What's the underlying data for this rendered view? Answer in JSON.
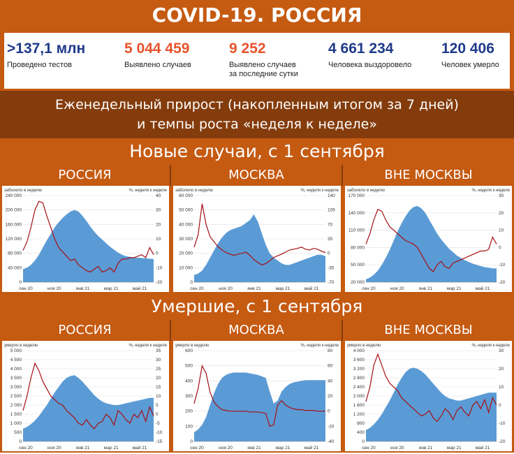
{
  "header": {
    "title": "COVID-19. РОССИЯ"
  },
  "stats": [
    {
      "value": ">137,1 млн",
      "label": "Проведено тестов",
      "label2": "",
      "color": "#1f3a8a"
    },
    {
      "value": "5 044 459",
      "label": "Выявлено случаев",
      "label2": "",
      "color": "#e8542c"
    },
    {
      "value": "9 252",
      "label": "Выявлено случаев",
      "label2": "за последние сутки",
      "color": "#e8542c"
    },
    {
      "value": "4 661 234",
      "label": "Человека выздоровело",
      "label2": "",
      "color": "#1f3a8a"
    },
    {
      "value": "120 406",
      "label": "Человек умерло",
      "label2": "",
      "color": "#1f3a8a"
    }
  ],
  "subtitle": {
    "line1": "Еженедельный прирост (накопленным итогом за 7 дней)",
    "line2": "и темпы роста «неделя к неделе»"
  },
  "sections": {
    "cases": "Новые случаи, с 1 сентября",
    "deaths": "Умершие, с 1 сентября"
  },
  "colors": {
    "band": "#c55a11",
    "band_dark": "#843c0c",
    "area": "#5b9bd5",
    "line": "#a50f15"
  },
  "chart_data": [
    {
      "type": "area",
      "panel": "РОССИЯ",
      "section": "cases",
      "left_axis_label": "заболело в неделю",
      "right_axis_label": "%, неделя к неделе",
      "x_ticks": [
        "сен 20",
        "ноя 20",
        "янв 21",
        "мар 21",
        "май 21"
      ],
      "ylim_left": [
        0,
        240000
      ],
      "yticks_left": [
        "0",
        "40 000",
        "80 000",
        "120 000",
        "160 000",
        "200 000",
        "240 000"
      ],
      "ylim_right": [
        -20,
        40
      ],
      "yticks_right": [
        "-20",
        "-10",
        "0",
        "10",
        "20",
        "30",
        "40"
      ],
      "area_values": [
        36000,
        40000,
        48000,
        60000,
        76000,
        96000,
        116000,
        134000,
        152000,
        166000,
        178000,
        188000,
        196000,
        200000,
        196000,
        184000,
        170000,
        154000,
        140000,
        128000,
        118000,
        108000,
        98000,
        90000,
        82000,
        76000,
        72000,
        70000,
        68000,
        68000,
        67000,
        66000,
        65000,
        64000
      ],
      "line_values": [
        2,
        8,
        18,
        30,
        36,
        35,
        26,
        18,
        10,
        4,
        1,
        -2,
        -5,
        -4,
        -8,
        -10,
        -12,
        -13,
        -11,
        -9,
        -13,
        -12,
        -10,
        -13,
        -7,
        -4,
        -4,
        -3,
        -3,
        -2,
        -1,
        -3,
        4,
        -1
      ]
    },
    {
      "type": "area",
      "panel": "МОСКВА",
      "section": "cases",
      "left_axis_label": "заболело в неделю",
      "right_axis_label": "%, неделя к неделе",
      "x_ticks": [
        "сен 20",
        "ноя 20",
        "янв 21",
        "мар 21",
        "май 21"
      ],
      "ylim_left": [
        0,
        60000
      ],
      "yticks_left": [
        "0",
        "10 000",
        "20 000",
        "30 000",
        "40 000",
        "50 000",
        "60 000"
      ],
      "ylim_right": [
        -70,
        140
      ],
      "yticks_right": [
        "-70",
        "-35",
        "0",
        "35",
        "70",
        "105",
        "140"
      ],
      "area_values": [
        5000,
        6000,
        8000,
        12000,
        17000,
        22000,
        27000,
        31000,
        34000,
        36000,
        37000,
        38000,
        39000,
        41000,
        43000,
        47000,
        42000,
        34000,
        26000,
        20000,
        17000,
        15000,
        13000,
        12000,
        12000,
        13000,
        14000,
        15000,
        16000,
        17000,
        18000,
        19000,
        19000,
        18000
      ],
      "line_values": [
        15,
        45,
        120,
        70,
        40,
        28,
        16,
        8,
        2,
        -2,
        -5,
        -2,
        0,
        3,
        -5,
        -15,
        -22,
        -28,
        -25,
        -18,
        -10,
        -6,
        -2,
        3,
        8,
        10,
        12,
        15,
        10,
        8,
        12,
        10,
        5,
        2
      ]
    },
    {
      "type": "area",
      "panel": "ВНЕ МОСКВЫ",
      "section": "cases",
      "left_axis_label": "заболело в неделю",
      "right_axis_label": "%, неделя к неделе",
      "x_ticks": [
        "сен 20",
        "ноя 20",
        "янв 21",
        "мар 21",
        "май 21"
      ],
      "ylim_left": [
        20000,
        170000
      ],
      "yticks_left": [
        "20 000",
        "50 000",
        "80 000",
        "110 000",
        "140 000",
        "170 000"
      ],
      "ylim_right": [
        -20,
        30
      ],
      "yticks_right": [
        "-20",
        "-10",
        "0",
        "10",
        "20",
        "30"
      ],
      "area_values": [
        25000,
        28000,
        33000,
        40000,
        50000,
        62000,
        76000,
        92000,
        108000,
        122000,
        134000,
        144000,
        150000,
        152000,
        148000,
        140000,
        128000,
        116000,
        104000,
        94000,
        86000,
        78000,
        72000,
        66000,
        62000,
        58000,
        55000,
        52000,
        50000,
        48000,
        46000,
        45000,
        44000,
        44000
      ],
      "line_values": [
        2,
        8,
        16,
        22,
        21,
        16,
        12,
        10,
        8,
        6,
        4,
        3,
        2,
        0,
        -4,
        -8,
        -12,
        -14,
        -10,
        -8,
        -11,
        -12,
        -9,
        -8,
        -7,
        -6,
        -5,
        -4,
        -3,
        -2,
        -2,
        -1,
        6,
        2
      ]
    },
    {
      "type": "area",
      "panel": "РОССИЯ",
      "section": "deaths",
      "left_axis_label": "умерло в неделю",
      "right_axis_label": "%, неделя к неделе",
      "x_ticks": [
        "сен 20",
        "ноя 20",
        "янв 21",
        "мар 21",
        "май 21"
      ],
      "ylim_left": [
        0,
        5000
      ],
      "yticks_left": [
        "0",
        "500",
        "1 000",
        "1 500",
        "2 000",
        "2 500",
        "3 000",
        "3 500",
        "4 000",
        "4 500",
        "5 000"
      ],
      "ylim_right": [
        -15,
        35
      ],
      "yticks_right": [
        "-15",
        "-10",
        "-5",
        "0",
        "5",
        "10",
        "15",
        "20",
        "25",
        "30",
        "35"
      ],
      "area_values": [
        700,
        800,
        950,
        1150,
        1400,
        1700,
        2000,
        2350,
        2700,
        3000,
        3300,
        3500,
        3600,
        3650,
        3500,
        3300,
        3050,
        2800,
        2550,
        2350,
        2200,
        2100,
        2050,
        2000,
        2000,
        2050,
        2100,
        2150,
        2200,
        2250,
        2300,
        2350,
        2400,
        2400
      ],
      "line_values": [
        2,
        10,
        20,
        28,
        24,
        18,
        14,
        10,
        8,
        6,
        5,
        2,
        0,
        -2,
        -5,
        -6,
        -3,
        -6,
        -8,
        -5,
        -4,
        0,
        -2,
        -6,
        2,
        0,
        -3,
        -5,
        0,
        -2,
        2,
        -4,
        4,
        -1
      ]
    },
    {
      "type": "area",
      "panel": "МОСКВА",
      "section": "deaths",
      "left_axis_label": "умерло в неделю",
      "right_axis_label": "%, неделя к неделе",
      "x_ticks": [
        "сен 20",
        "ноя 20",
        "янв 21",
        "мар 21",
        "май 21"
      ],
      "ylim_left": [
        0,
        600
      ],
      "yticks_left": [
        "0",
        "100",
        "200",
        "300",
        "400",
        "500",
        "600"
      ],
      "ylim_right": [
        -40,
        80
      ],
      "yticks_right": [
        "-40",
        "-20",
        "0",
        "20",
        "40",
        "60",
        "80"
      ],
      "area_values": [
        60,
        80,
        110,
        160,
        240,
        320,
        380,
        420,
        440,
        450,
        455,
        455,
        455,
        455,
        450,
        445,
        440,
        430,
        420,
        330,
        250,
        270,
        330,
        360,
        380,
        390,
        395,
        400,
        405,
        405,
        405,
        405,
        405,
        405
      ],
      "line_values": [
        10,
        30,
        60,
        50,
        25,
        12,
        6,
        2,
        1,
        0,
        0,
        0,
        0,
        0,
        -1,
        -1,
        -1,
        -2,
        -3,
        -20,
        -18,
        8,
        14,
        8,
        5,
        3,
        2,
        2,
        1,
        1,
        1,
        0,
        0,
        0
      ]
    },
    {
      "type": "area",
      "panel": "ВНЕ МОСКВЫ",
      "section": "deaths",
      "left_axis_label": "умерло в неделю",
      "right_axis_label": "%, неделя к неделе",
      "x_ticks": [
        "сен 20",
        "ноя 20",
        "янв 21",
        "мар 21",
        "май 21"
      ],
      "ylim_left": [
        0,
        4000
      ],
      "yticks_left": [
        "0",
        "400",
        "800",
        "1 200",
        "1 600",
        "2 000",
        "2 400",
        "2 800",
        "3 200",
        "3 600",
        "4 000"
      ],
      "ylim_right": [
        -20,
        30
      ],
      "yticks_right": [
        "-20",
        "-10",
        "0",
        "10",
        "20",
        "30"
      ],
      "area_values": [
        500,
        600,
        750,
        950,
        1200,
        1500,
        1800,
        2150,
        2500,
        2800,
        3050,
        3200,
        3250,
        3200,
        3100,
        2950,
        2750,
        2550,
        2350,
        2150,
        2000,
        1900,
        1850,
        1800,
        1800,
        1850,
        1900,
        1950,
        2000,
        2050,
        2100,
        2150,
        2150,
        2150
      ],
      "line_values": [
        2,
        10,
        22,
        28,
        22,
        16,
        12,
        10,
        8,
        4,
        2,
        0,
        -2,
        -4,
        -6,
        -5,
        -3,
        -7,
        -9,
        -6,
        -2,
        -4,
        -8,
        -3,
        -1,
        -4,
        -6,
        0,
        2,
        -2,
        3,
        -4,
        4,
        0
      ]
    }
  ]
}
